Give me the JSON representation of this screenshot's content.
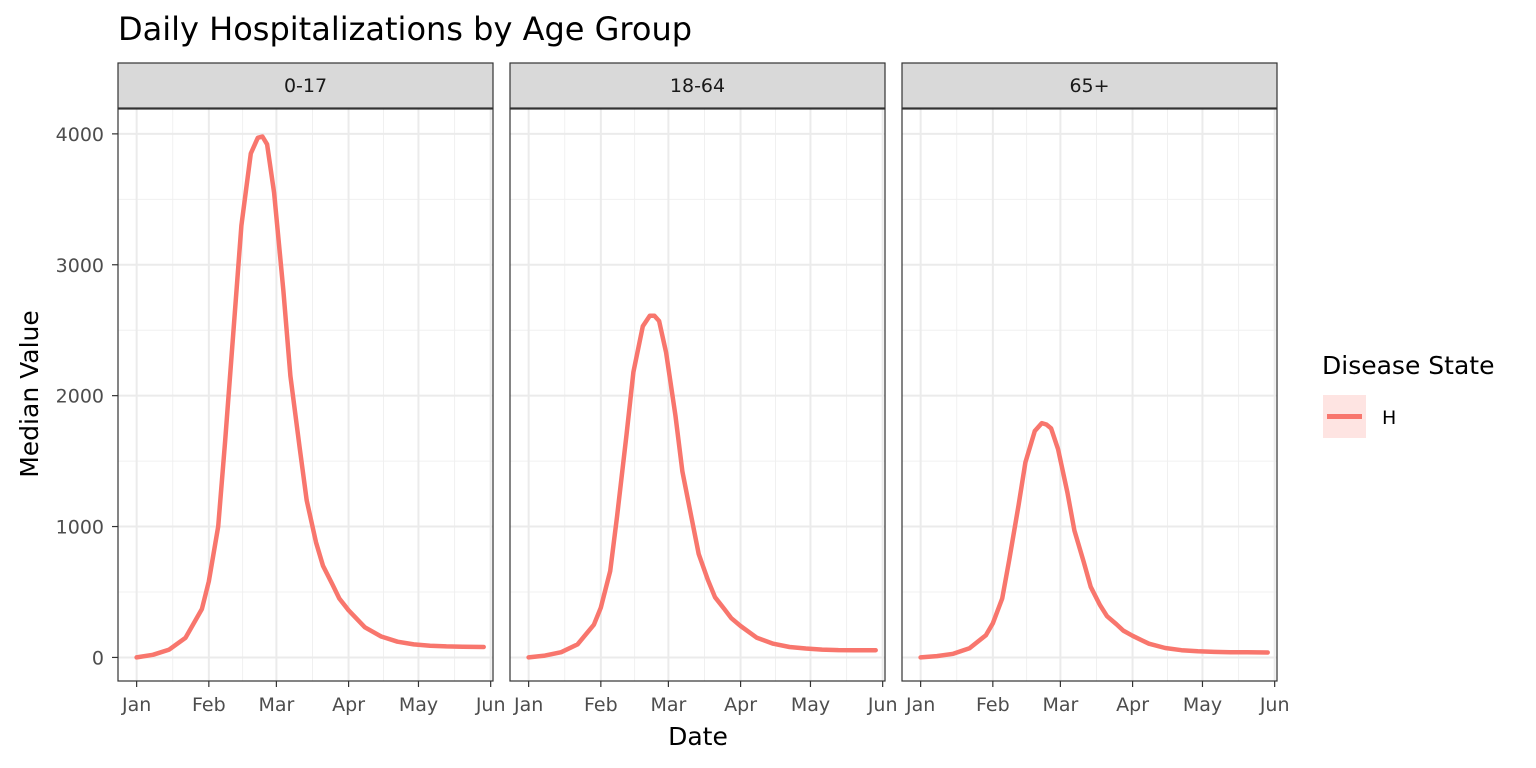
{
  "chart_data": {
    "type": "line",
    "title": "Daily Hospitalizations by Age Group",
    "xlabel": "Date",
    "ylabel": "Median Value",
    "x_ticks": [
      "Jan",
      "Feb",
      "Mar",
      "Apr",
      "May",
      "Jun"
    ],
    "x_tick_dates": [
      "2024-01-01",
      "2024-02-01",
      "2024-03-01",
      "2024-04-01",
      "2024-05-01",
      "2024-06-01"
    ],
    "xlim": [
      "2023-12-24",
      "2024-06-02"
    ],
    "y_ticks": [
      0,
      1000,
      2000,
      3000,
      4000
    ],
    "ylim": [
      -180,
      4190
    ],
    "grid": true,
    "line_color": "#F8766D",
    "legend": {
      "title": "Disease State",
      "entries": [
        "H"
      ],
      "position": "right"
    },
    "facets": [
      {
        "label": "0-17",
        "series": [
          {
            "name": "H",
            "x": [
              "2024-01-01",
              "2024-01-08",
              "2024-01-15",
              "2024-01-22",
              "2024-01-29",
              "2024-02-01",
              "2024-02-05",
              "2024-02-08",
              "2024-02-12",
              "2024-02-15",
              "2024-02-19",
              "2024-02-22",
              "2024-02-24",
              "2024-02-26",
              "2024-02-29",
              "2024-03-04",
              "2024-03-07",
              "2024-03-11",
              "2024-03-14",
              "2024-03-18",
              "2024-03-21",
              "2024-03-25",
              "2024-03-28",
              "2024-04-01",
              "2024-04-08",
              "2024-04-15",
              "2024-04-22",
              "2024-04-29",
              "2024-05-06",
              "2024-05-13",
              "2024-05-20",
              "2024-05-29"
            ],
            "y": [
              0,
              20,
              60,
              150,
              370,
              580,
              1000,
              1650,
              2600,
              3300,
              3850,
              3970,
              3980,
              3920,
              3550,
              2800,
              2150,
              1600,
              1200,
              880,
              700,
              560,
              450,
              360,
              230,
              160,
              120,
              100,
              90,
              84,
              82,
              80
            ]
          }
        ]
      },
      {
        "label": "18-64",
        "series": [
          {
            "name": "H",
            "x": [
              "2024-01-01",
              "2024-01-08",
              "2024-01-15",
              "2024-01-22",
              "2024-01-29",
              "2024-02-01",
              "2024-02-05",
              "2024-02-08",
              "2024-02-12",
              "2024-02-15",
              "2024-02-19",
              "2024-02-22",
              "2024-02-24",
              "2024-02-26",
              "2024-02-29",
              "2024-03-04",
              "2024-03-07",
              "2024-03-11",
              "2024-03-14",
              "2024-03-18",
              "2024-03-21",
              "2024-03-25",
              "2024-03-28",
              "2024-04-01",
              "2024-04-08",
              "2024-04-15",
              "2024-04-22",
              "2024-04-29",
              "2024-05-06",
              "2024-05-13",
              "2024-05-20",
              "2024-05-29"
            ],
            "y": [
              0,
              14,
              40,
              100,
              250,
              380,
              660,
              1080,
              1700,
              2180,
              2530,
              2610,
              2610,
              2570,
              2330,
              1850,
              1420,
              1060,
              790,
              590,
              460,
              370,
              300,
              240,
              150,
              105,
              80,
              68,
              60,
              56,
              55,
              55
            ]
          }
        ]
      },
      {
        "label": "65+",
        "series": [
          {
            "name": "H",
            "x": [
              "2024-01-01",
              "2024-01-08",
              "2024-01-15",
              "2024-01-22",
              "2024-01-29",
              "2024-02-01",
              "2024-02-05",
              "2024-02-08",
              "2024-02-12",
              "2024-02-15",
              "2024-02-19",
              "2024-02-22",
              "2024-02-24",
              "2024-02-26",
              "2024-02-29",
              "2024-03-04",
              "2024-03-07",
              "2024-03-11",
              "2024-03-14",
              "2024-03-18",
              "2024-03-21",
              "2024-03-25",
              "2024-03-28",
              "2024-04-01",
              "2024-04-08",
              "2024-04-15",
              "2024-04-22",
              "2024-04-29",
              "2024-05-06",
              "2024-05-13",
              "2024-05-20",
              "2024-05-29"
            ],
            "y": [
              0,
              10,
              28,
              70,
              170,
              260,
              450,
              740,
              1160,
              1490,
              1730,
              1790,
              1780,
              1750,
              1590,
              1260,
              970,
              730,
              540,
              400,
              315,
              255,
              205,
              165,
              105,
              72,
              55,
              47,
              42,
              40,
              39,
              38
            ]
          }
        ]
      }
    ]
  }
}
